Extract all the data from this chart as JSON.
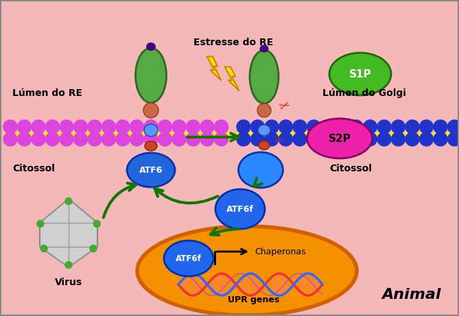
{
  "bg_color": "#f5b8b8",
  "labels": {
    "lumen_re": "Lúmen do RE",
    "lumen_golgi": "Lúmen do Golgi",
    "citossol_left": "Citossol",
    "citossol_right": "Citossol",
    "estresse": "Estresse do RE",
    "virus": "Virus",
    "atf6": "ATF6",
    "atf6f_mid": "ATF6f",
    "atf6f_nucleus": "ATF6f",
    "s1p": "S1P",
    "s2p": "S2P",
    "chaperonas": "Chaperonas",
    "upr": "UPR genes",
    "animal": "Animal"
  },
  "colors": {
    "membrane_pink": "#dd44dd",
    "membrane_yellow": "#ffee00",
    "membrane_blue": "#2233cc",
    "atf6_ball_top": "#3399ff",
    "atf6_ball_bottom": "#1155cc",
    "protein_green": "#55aa44",
    "protein_linker": "#cc6644",
    "s1p_green": "#44bb22",
    "s2p_magenta": "#ee22aa",
    "nucleus_orange": "#f59000",
    "nucleus_outline": "#d06000",
    "arrow_green": "#117700",
    "lightning_yellow": "#ffdd00",
    "lightning_outline": "#cc8800",
    "dna_red": "#ee3333",
    "dna_blue": "#3366ff",
    "dna_pink": "#ff66bb",
    "purple_dot": "#440088",
    "scissors_red": "#cc3300"
  }
}
